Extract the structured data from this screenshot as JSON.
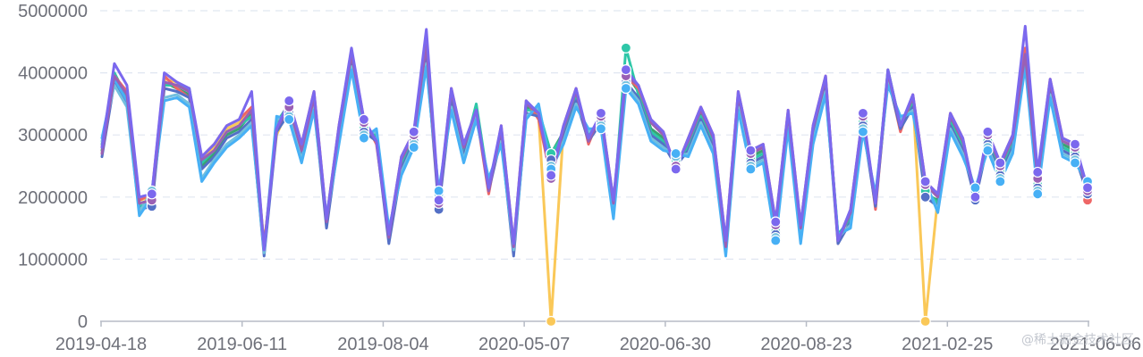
{
  "watermark": "@稀土掘金技术社区",
  "chart_data": {
    "type": "line",
    "title": "",
    "xlabel": "",
    "ylabel": "",
    "ylim": [
      0,
      5000000
    ],
    "y_ticks": [
      "0",
      "1000000",
      "2000000",
      "3000000",
      "4000000",
      "5000000"
    ],
    "x_tick_labels": [
      "2019-04-18",
      "2019-06-11",
      "2019-08-04",
      "2020-05-07",
      "2020-06-30",
      "2020-08-23",
      "2021-02-25",
      "2021-06-06"
    ],
    "grid": true,
    "legend": "none",
    "n_points": 80,
    "series": [
      {
        "color": "#fac858",
        "values": [
          2700000,
          3900000,
          3650000,
          1950000,
          2000000,
          3900000,
          3850000,
          3700000,
          2600000,
          2800000,
          3100000,
          3200000,
          3400000,
          1250000,
          3000000,
          3450000,
          2800000,
          3600000,
          1600000,
          3100000,
          4300000,
          3200000,
          2900000,
          1350000,
          2600000,
          3000000,
          4450000,
          1850000,
          3700000,
          2800000,
          3400000,
          2100000,
          3100000,
          1200000,
          3500000,
          3300000,
          0,
          3100000,
          3700000,
          2900000,
          3300000,
          1900000,
          3900000,
          3800000,
          3200000,
          3000000,
          2500000,
          2900000,
          3400000,
          2950000,
          1250000,
          3650000,
          2700000,
          2800000,
          1550000,
          3350000,
          1500000,
          3100000,
          3900000,
          1300000,
          1750000,
          3300000,
          1850000,
          4000000,
          3100000,
          3600000,
          0,
          2000000,
          3300000,
          2900000,
          2000000,
          3000000,
          2500000,
          2950000,
          4350000,
          2300000,
          3850000,
          2900000,
          2800000,
          2000000
        ]
      },
      {
        "color": "#3ba272",
        "values": [
          2750000,
          3950000,
          3550000,
          1900000,
          1950000,
          3850000,
          3750000,
          3650000,
          2500000,
          2700000,
          3000000,
          3100000,
          3350000,
          1150000,
          3150000,
          3400000,
          2700000,
          3550000,
          1550000,
          3000000,
          4250000,
          3150000,
          2950000,
          1300000,
          2550000,
          2950000,
          4400000,
          1900000,
          3650000,
          2750000,
          3450000,
          2150000,
          3000000,
          1150000,
          3450000,
          3350000,
          2700000,
          3050000,
          3650000,
          2950000,
          3300000,
          1850000,
          4000000,
          3700000,
          3100000,
          2950000,
          2550000,
          2850000,
          3350000,
          2900000,
          1200000,
          3600000,
          2650000,
          2750000,
          1500000,
          3300000,
          1450000,
          3050000,
          3850000,
          1350000,
          1700000,
          3250000,
          1900000,
          4050000,
          3150000,
          3550000,
          2050000,
          1950000,
          3250000,
          2850000,
          2050000,
          2950000,
          2450000,
          2900000,
          4300000,
          2250000,
          3800000,
          2850000,
          2750000,
          2100000
        ]
      },
      {
        "color": "#2ec7a8",
        "values": [
          2850000,
          4000000,
          3600000,
          1850000,
          1900000,
          3800000,
          3800000,
          3750000,
          2550000,
          2750000,
          3050000,
          3150000,
          3300000,
          1100000,
          3200000,
          3500000,
          2750000,
          3650000,
          1600000,
          3050000,
          4200000,
          3100000,
          3000000,
          1350000,
          2500000,
          3050000,
          4350000,
          1950000,
          3600000,
          2700000,
          3500000,
          2200000,
          3050000,
          1100000,
          3400000,
          3400000,
          2700000,
          3000000,
          3600000,
          3000000,
          3250000,
          1800000,
          4400000,
          3650000,
          3050000,
          2900000,
          2600000,
          2800000,
          3300000,
          2850000,
          1100000,
          3550000,
          2600000,
          2700000,
          1450000,
          3250000,
          1400000,
          3000000,
          3800000,
          1400000,
          1650000,
          3200000,
          1950000,
          3950000,
          3200000,
          3500000,
          2100000,
          1900000,
          3200000,
          2800000,
          2100000,
          2900000,
          2400000,
          2850000,
          4250000,
          2200000,
          3750000,
          2800000,
          2700000,
          2150000
        ]
      },
      {
        "color": "#ee6666",
        "values": [
          2800000,
          3950000,
          3700000,
          1950000,
          2050000,
          3950000,
          3750000,
          3600000,
          2650000,
          2850000,
          3150000,
          3250000,
          3450000,
          1200000,
          3100000,
          3550000,
          2850000,
          3700000,
          1650000,
          3150000,
          4350000,
          3250000,
          2850000,
          1400000,
          2650000,
          3050000,
          4500000,
          1900000,
          3750000,
          2850000,
          3350000,
          2050000,
          3150000,
          1250000,
          3550000,
          3250000,
          2300000,
          3150000,
          3750000,
          2850000,
          3350000,
          1950000,
          3950000,
          3750000,
          3250000,
          3050000,
          2450000,
          2950000,
          3450000,
          3000000,
          1300000,
          3700000,
          2750000,
          2850000,
          1600000,
          3400000,
          1550000,
          3150000,
          3950000,
          1250000,
          1800000,
          3350000,
          1800000,
          3950000,
          3050000,
          3650000,
          2250000,
          2050000,
          3350000,
          2950000,
          1950000,
          3050000,
          2550000,
          3000000,
          4400000,
          2350000,
          3900000,
          2950000,
          2850000,
          1950000
        ]
      },
      {
        "color": "#5470c6",
        "values": [
          2650000,
          3850000,
          3500000,
          1800000,
          1850000,
          3750000,
          3700000,
          3600000,
          2450000,
          2650000,
          2950000,
          3050000,
          3250000,
          1050000,
          3050000,
          3350000,
          2650000,
          3500000,
          1500000,
          2950000,
          4150000,
          3050000,
          2900000,
          1250000,
          2450000,
          2900000,
          4300000,
          1800000,
          3550000,
          2650000,
          3400000,
          2100000,
          2950000,
          1050000,
          3350000,
          3300000,
          2600000,
          2950000,
          3550000,
          2900000,
          3200000,
          1750000,
          3850000,
          3600000,
          3000000,
          2850000,
          2500000,
          2750000,
          3250000,
          2800000,
          1150000,
          3500000,
          2550000,
          2650000,
          1400000,
          3200000,
          1350000,
          2950000,
          3750000,
          1250000,
          1600000,
          3150000,
          1850000,
          3900000,
          3100000,
          3450000,
          2000000,
          1850000,
          3150000,
          2750000,
          1950000,
          2850000,
          2350000,
          2800000,
          4200000,
          2150000,
          3700000,
          2750000,
          2650000,
          2050000
        ]
      },
      {
        "color": "#73c0de",
        "values": [
          2900000,
          3800000,
          3450000,
          1750000,
          2100000,
          3600000,
          3650000,
          3500000,
          2300000,
          2600000,
          2850000,
          3000000,
          3200000,
          1100000,
          3250000,
          3300000,
          2600000,
          3450000,
          1700000,
          2900000,
          4100000,
          3000000,
          3050000,
          1450000,
          2400000,
          2850000,
          4150000,
          2050000,
          3450000,
          2600000,
          3300000,
          2250000,
          2900000,
          1150000,
          3300000,
          3450000,
          2500000,
          2900000,
          3500000,
          3050000,
          3150000,
          1700000,
          3800000,
          3550000,
          2950000,
          2800000,
          2650000,
          2700000,
          3200000,
          2750000,
          1100000,
          3450000,
          2500000,
          2600000,
          1350000,
          3150000,
          1300000,
          2900000,
          3700000,
          1350000,
          1550000,
          3100000,
          2000000,
          3850000,
          3250000,
          3400000,
          2200000,
          1800000,
          3100000,
          2700000,
          2100000,
          2800000,
          2300000,
          2750000,
          4150000,
          2100000,
          3650000,
          2700000,
          2600000,
          2200000
        ]
      },
      {
        "color": "#47b0f5",
        "values": [
          2950000,
          3900000,
          3550000,
          1700000,
          2000000,
          3550000,
          3600000,
          3450000,
          2250000,
          2550000,
          2800000,
          2950000,
          3150000,
          1150000,
          3300000,
          3250000,
          2550000,
          3400000,
          1650000,
          2850000,
          4050000,
          2950000,
          3100000,
          1500000,
          2350000,
          2800000,
          4100000,
          2100000,
          3400000,
          2550000,
          3250000,
          2300000,
          2850000,
          1200000,
          3250000,
          3500000,
          2450000,
          2850000,
          3450000,
          3100000,
          3100000,
          1650000,
          3750000,
          3500000,
          2900000,
          2750000,
          2700000,
          2650000,
          3150000,
          2700000,
          1050000,
          3400000,
          2450000,
          2550000,
          1300000,
          3100000,
          1250000,
          2850000,
          3650000,
          1400000,
          1500000,
          3050000,
          2050000,
          3800000,
          3300000,
          3350000,
          2250000,
          1750000,
          3050000,
          2650000,
          2150000,
          2750000,
          2250000,
          2700000,
          4100000,
          2050000,
          3600000,
          2650000,
          2550000,
          2250000
        ]
      },
      {
        "color": "#9a60b4",
        "values": [
          2700000,
          3950000,
          3650000,
          1900000,
          1950000,
          3850000,
          3800000,
          3700000,
          2600000,
          2750000,
          3050000,
          3150000,
          3400000,
          1200000,
          3100000,
          3450000,
          2750000,
          3600000,
          1600000,
          3100000,
          4300000,
          3200000,
          2900000,
          1350000,
          2600000,
          3000000,
          4450000,
          1900000,
          3700000,
          2800000,
          3400000,
          2100000,
          3100000,
          1200000,
          3500000,
          3350000,
          2300000,
          3100000,
          3700000,
          2900000,
          3300000,
          1900000,
          3950000,
          3800000,
          3200000,
          3000000,
          2500000,
          2900000,
          3400000,
          2950000,
          1200000,
          3650000,
          2700000,
          2800000,
          1550000,
          3350000,
          1500000,
          3100000,
          3900000,
          1300000,
          1750000,
          3300000,
          1900000,
          4000000,
          3150000,
          3600000,
          2200000,
          2000000,
          3300000,
          2900000,
          2000000,
          3000000,
          2500000,
          2950000,
          4300000,
          2300000,
          3850000,
          2900000,
          2800000,
          2100000
        ]
      },
      {
        "color": "#7b68ee",
        "values": [
          2800000,
          4150000,
          3800000,
          2000000,
          2050000,
          4000000,
          3850000,
          3750000,
          2650000,
          2850000,
          3150000,
          3250000,
          3700000,
          1150000,
          3100000,
          3550000,
          2850000,
          3700000,
          1650000,
          3150000,
          4400000,
          3250000,
          2900000,
          1400000,
          2650000,
          3050000,
          4700000,
          1950000,
          3750000,
          2850000,
          3400000,
          2150000,
          3150000,
          1250000,
          3550000,
          3350000,
          2350000,
          3150000,
          3750000,
          2950000,
          3350000,
          1950000,
          4050000,
          3800000,
          3250000,
          3050000,
          2450000,
          2950000,
          3450000,
          3000000,
          1300000,
          3700000,
          2750000,
          2850000,
          1600000,
          3400000,
          1550000,
          3150000,
          3950000,
          1300000,
          1800000,
          3350000,
          1900000,
          4050000,
          3150000,
          3650000,
          2250000,
          2050000,
          3350000,
          2950000,
          2000000,
          3050000,
          2550000,
          3000000,
          4750000,
          2400000,
          3900000,
          2950000,
          2850000,
          2150000
        ]
      }
    ]
  }
}
